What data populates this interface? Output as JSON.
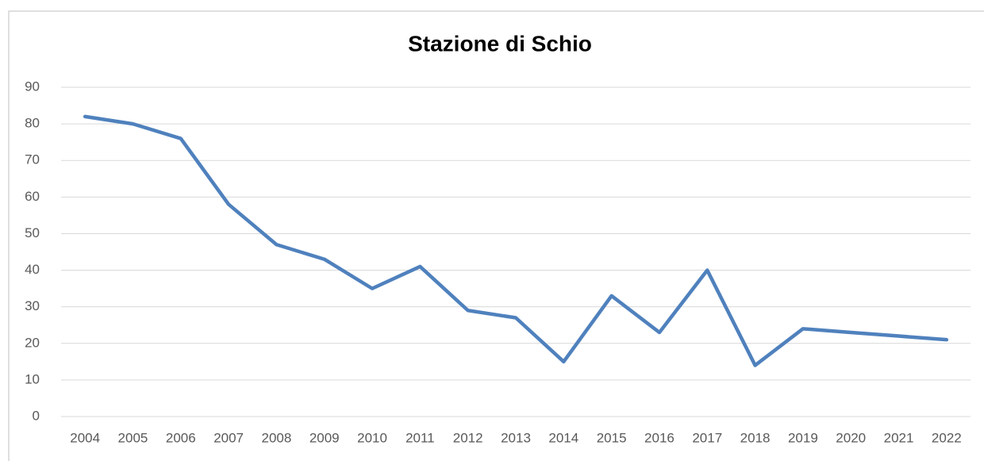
{
  "chart_data": {
    "type": "line",
    "title": "Stazione di Schio",
    "categories": [
      "2004",
      "2005",
      "2006",
      "2007",
      "2008",
      "2009",
      "2010",
      "2011",
      "2012",
      "2013",
      "2014",
      "2015",
      "2016",
      "2017",
      "2018",
      "2019",
      "2020",
      "2021",
      "2022"
    ],
    "values": [
      82,
      80,
      76,
      58,
      47,
      43,
      35,
      41,
      29,
      27,
      15,
      33,
      23,
      40,
      14,
      24,
      23,
      22,
      21
    ],
    "color": "#4f81bd",
    "ylim": [
      0,
      90
    ],
    "yticks": [
      0,
      10,
      20,
      30,
      40,
      50,
      60,
      70,
      80,
      90
    ],
    "grid": true
  }
}
